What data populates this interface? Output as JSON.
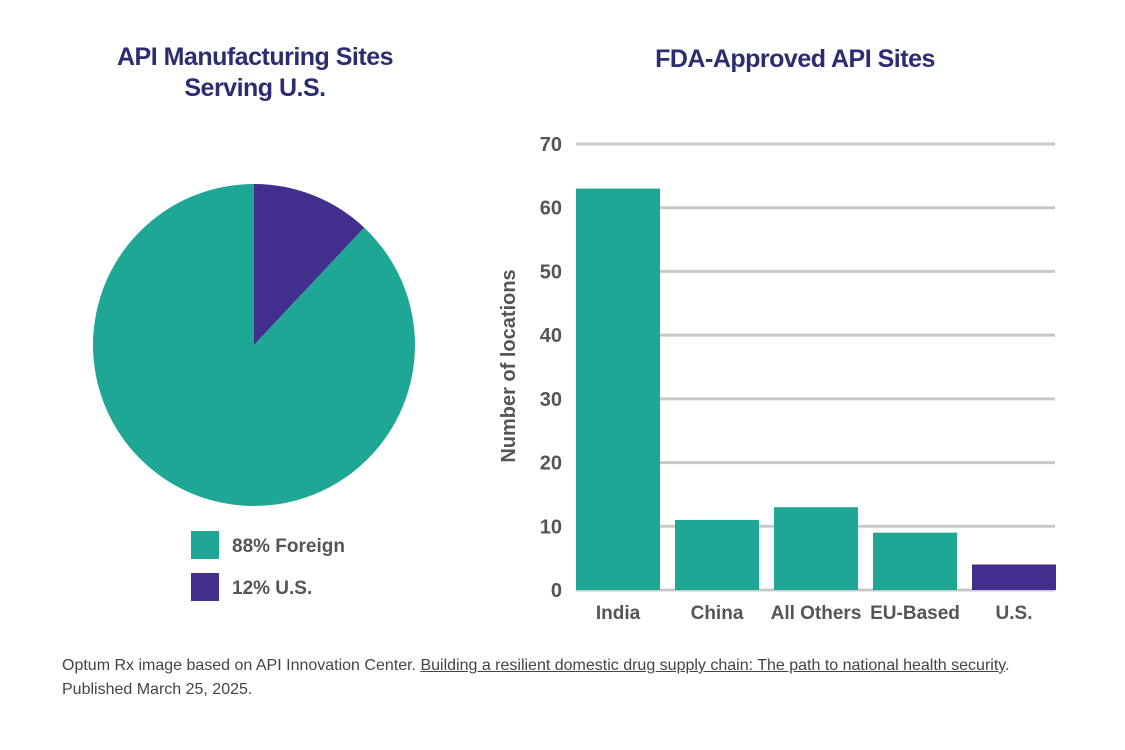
{
  "colors": {
    "foreign": "#1fa795",
    "us": "#412e8d",
    "title": "#2b2d72",
    "grid": "#c8c8c8",
    "text": "#555555"
  },
  "chart_data": [
    {
      "type": "pie",
      "title": "API Manufacturing Sites Serving U.S.",
      "slices": [
        {
          "label": "88% Foreign",
          "value": 88,
          "color": "#1fa795"
        },
        {
          "label": "12% U.S.",
          "value": 12,
          "color": "#412e8d"
        }
      ]
    },
    {
      "type": "bar",
      "title": "FDA-Approved API Sites",
      "ylabel": "Number of locations",
      "xlabel": "",
      "ylim": [
        0,
        70
      ],
      "yticks": [
        "0",
        "10",
        "20",
        "30",
        "40",
        "50",
        "60",
        "70"
      ],
      "categories": [
        "India",
        "China",
        "All Others",
        "EU-Based",
        "U.S."
      ],
      "values": [
        63,
        11,
        13,
        9,
        4
      ],
      "bar_colors": [
        "#1fa795",
        "#1fa795",
        "#1fa795",
        "#1fa795",
        "#412e8d"
      ],
      "grid": true
    }
  ],
  "footnote": {
    "prefix": "Optum Rx image based on API Innovation Center. ",
    "link_text": "Building a resilient domestic drug supply chain: The path to national health security",
    "suffix": ". Published March 25, 2025."
  }
}
